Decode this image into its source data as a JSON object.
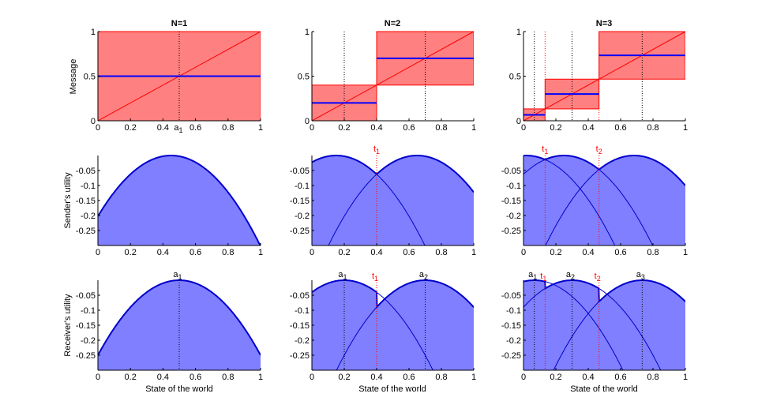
{
  "chart_data": {
    "type": "line",
    "sender_bias": 0.05,
    "colors": {
      "interval_fill": "#ff8080",
      "interval_edge": "#ff0000",
      "action_line": "#0000ff",
      "utility_fill": "#7f7fff",
      "utility_line": "#0000cc",
      "threshold": "#ff0000",
      "action_marker": "#000000"
    },
    "columns": [
      {
        "title": "N=1",
        "N": 1,
        "thresholds": [
          0,
          1
        ],
        "actions": [
          0.5
        ],
        "action_labels": [
          "a1"
        ],
        "threshold_labels": []
      },
      {
        "title": "N=2",
        "N": 2,
        "thresholds": [
          0,
          0.4,
          1
        ],
        "actions": [
          0.2,
          0.7
        ],
        "action_labels": [
          "a1",
          "a2"
        ],
        "threshold_labels": [
          "t1"
        ]
      },
      {
        "title": "N=3",
        "N": 3,
        "thresholds": [
          0,
          0.1333,
          0.4667,
          1
        ],
        "actions": [
          0.0667,
          0.3,
          0.7333
        ],
        "action_labels": [
          "a1",
          "a2",
          "a3"
        ],
        "threshold_labels": [
          "t1",
          "t2"
        ]
      }
    ],
    "rows": [
      {
        "ylabel": "Message",
        "ylim": [
          0,
          1
        ],
        "yticks": [
          "0",
          "0.5",
          "1"
        ],
        "ytick_values": [
          0,
          0.5,
          1
        ]
      },
      {
        "ylabel": "Sender's utility",
        "ylim": [
          -0.3,
          0
        ],
        "yticks": [
          "-0.05",
          "-0.1",
          "-0.15",
          "-0.2",
          "-0.25"
        ],
        "ytick_values": [
          -0.05,
          -0.1,
          -0.15,
          -0.2,
          -0.25
        ]
      },
      {
        "ylabel": "Receiver's utility",
        "ylim": [
          -0.3,
          0
        ],
        "yticks": [
          "-0.05",
          "-0.1",
          "-0.15",
          "-0.2",
          "-0.25"
        ],
        "ytick_values": [
          -0.05,
          -0.1,
          -0.15,
          -0.2,
          -0.25
        ]
      }
    ],
    "xlim": [
      0,
      1
    ],
    "xticks": [
      "0",
      "0.2",
      "0.4",
      "0.6",
      "0.8",
      "1"
    ],
    "xtick_values": [
      0,
      0.2,
      0.4,
      0.6,
      0.8,
      1
    ],
    "top_left_extra_xtick": "a1",
    "xlabel": "State of the world",
    "grid": false,
    "legend": "none"
  }
}
